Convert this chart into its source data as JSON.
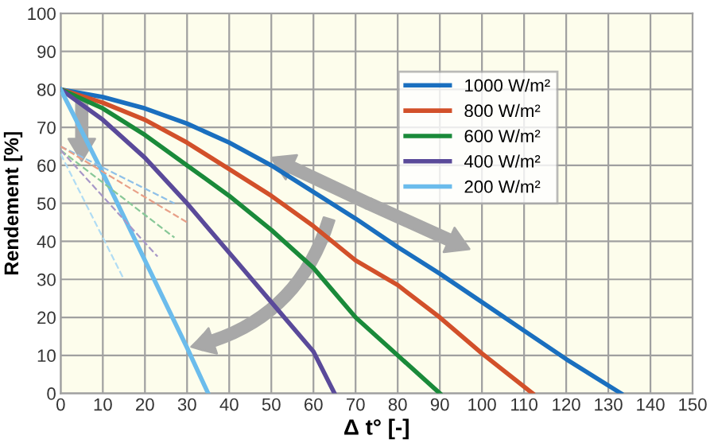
{
  "chart_data": {
    "type": "line",
    "xlabel": "Δ t° [-]",
    "ylabel": "Rendement [%]",
    "xlim": [
      0,
      150
    ],
    "ylim": [
      0,
      100
    ],
    "xticks": [
      0,
      10,
      20,
      30,
      40,
      50,
      60,
      70,
      80,
      90,
      100,
      110,
      120,
      130,
      140,
      150
    ],
    "yticks": [
      0,
      10,
      20,
      30,
      40,
      50,
      60,
      70,
      80,
      90,
      100
    ],
    "grid": true,
    "legend": "top right",
    "marker": "none",
    "line_style": "solid",
    "series": [
      {
        "name": "1000 W/m²",
        "color": "#1a6fbf",
        "x": [
          0,
          10,
          20,
          30,
          40,
          50,
          60,
          70,
          80,
          90,
          100,
          110,
          120,
          133
        ],
        "values": [
          80,
          78,
          75,
          71,
          66,
          60,
          53,
          46,
          38.5,
          31.5,
          24,
          16.5,
          9,
          0
        ]
      },
      {
        "name": "800 W/m²",
        "color": "#d2502a",
        "x": [
          0,
          10,
          20,
          30,
          40,
          50,
          60,
          70,
          80,
          90,
          100,
          112
        ],
        "values": [
          80,
          76.5,
          72,
          66,
          59,
          52,
          44,
          35,
          28.5,
          20,
          10.5,
          0
        ]
      },
      {
        "name": "600 W/m²",
        "color": "#1a8a3a",
        "x": [
          0,
          10,
          20,
          30,
          40,
          50,
          60,
          70,
          80,
          90
        ],
        "values": [
          80,
          75,
          68,
          60,
          52,
          43,
          33,
          20,
          10,
          0
        ]
      },
      {
        "name": "400 W/m²",
        "color": "#5a4a9a",
        "x": [
          0,
          10,
          20,
          30,
          40,
          50,
          60,
          65
        ],
        "values": [
          80,
          72,
          62,
          50,
          37,
          24,
          11,
          0
        ]
      },
      {
        "name": "200 W/m²",
        "color": "#6bbcec",
        "x": [
          0,
          10,
          20,
          30,
          35
        ],
        "values": [
          80,
          58,
          35,
          12,
          0
        ]
      },
      {
        "color": "#8fc0e8",
        "line_style": "dashed",
        "x": [
          0,
          27
        ],
        "values": [
          65,
          50
        ]
      },
      {
        "color": "#e8a088",
        "line_style": "dashed",
        "x": [
          0,
          30
        ],
        "values": [
          65,
          45
        ]
      },
      {
        "color": "#88c898",
        "line_style": "dashed",
        "x": [
          0,
          27
        ],
        "values": [
          64,
          41
        ]
      },
      {
        "color": "#a898c8",
        "line_style": "dashed",
        "x": [
          0,
          23
        ],
        "values": [
          64,
          36
        ]
      },
      {
        "color": "#b0dcf4",
        "line_style": "dashed",
        "x": [
          0,
          15
        ],
        "values": [
          63,
          30
        ]
      }
    ]
  }
}
